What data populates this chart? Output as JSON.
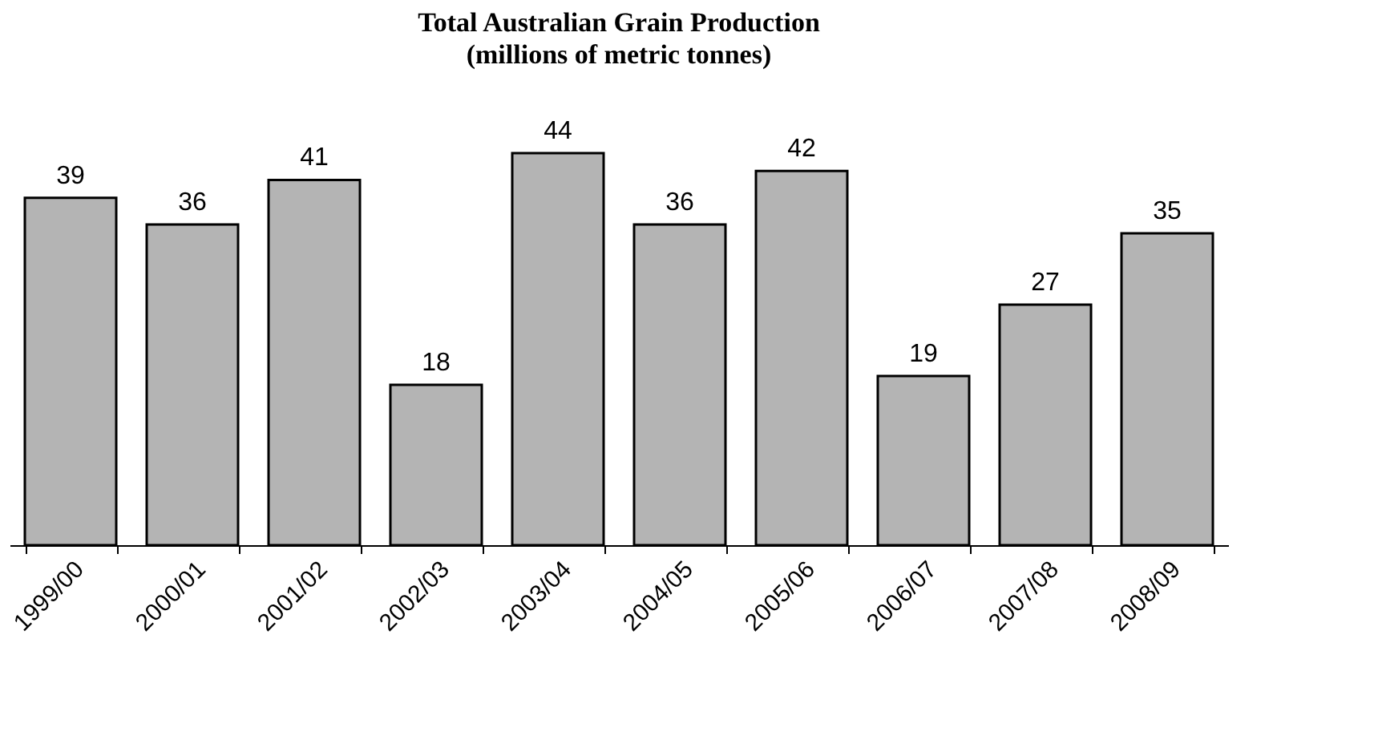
{
  "chart_data": {
    "type": "bar",
    "title": "Total Australian Grain Production",
    "subtitle": "(millions of metric tonnes)",
    "categories": [
      "1999/00",
      "2000/01",
      "2001/02",
      "2002/03",
      "2003/04",
      "2004/05",
      "2005/06",
      "2006/07",
      "2007/08",
      "2008/09"
    ],
    "values": [
      39,
      36,
      41,
      18,
      44,
      36,
      42,
      19,
      27,
      35
    ],
    "color": "#b4b4b4",
    "data_labels": true
  }
}
